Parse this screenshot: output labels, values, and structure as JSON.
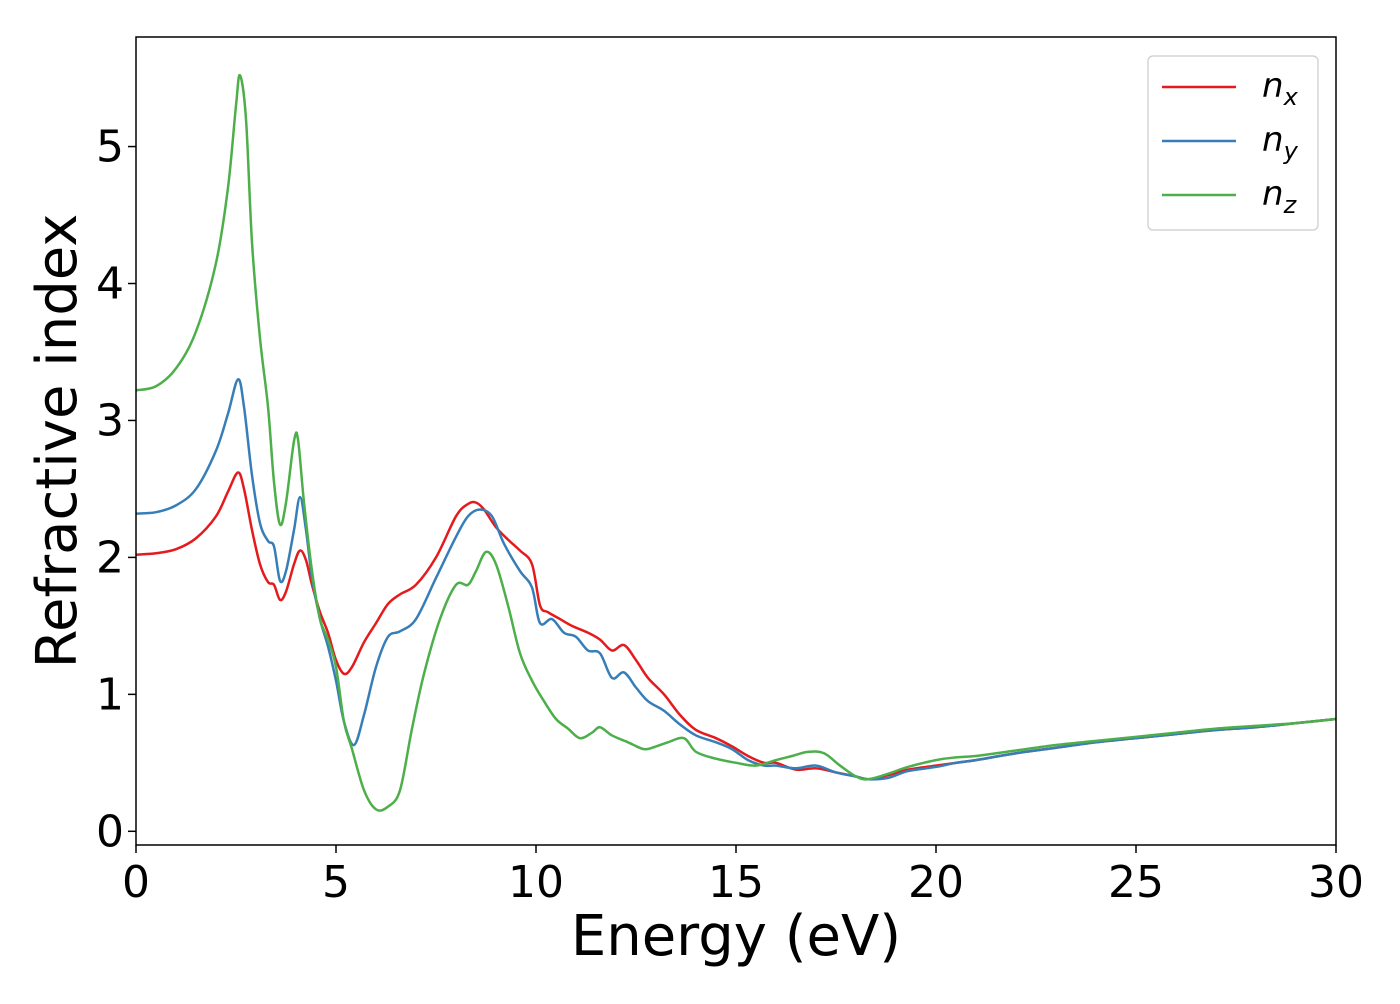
{
  "chart_data": {
    "type": "line",
    "title": "",
    "xlabel": "Energy (eV)",
    "ylabel": "Refractive index",
    "xlim": [
      0,
      30
    ],
    "ylim": [
      -0.1,
      5.8
    ],
    "xticks": [
      0,
      5,
      10,
      15,
      20,
      25,
      30
    ],
    "yticks": [
      0,
      1,
      2,
      3,
      4,
      5
    ],
    "grid": false,
    "legend_position": "top-right",
    "series": [
      {
        "name": "n",
        "subscript": "x",
        "color": "#e41a1c",
        "points": [
          [
            0,
            2.02
          ],
          [
            0.5,
            2.03
          ],
          [
            1,
            2.06
          ],
          [
            1.5,
            2.14
          ],
          [
            2,
            2.3
          ],
          [
            2.3,
            2.48
          ],
          [
            2.55,
            2.62
          ],
          [
            2.7,
            2.5
          ],
          [
            2.9,
            2.2
          ],
          [
            3.1,
            1.95
          ],
          [
            3.3,
            1.82
          ],
          [
            3.45,
            1.8
          ],
          [
            3.6,
            1.69
          ],
          [
            3.75,
            1.75
          ],
          [
            3.95,
            1.95
          ],
          [
            4.1,
            2.05
          ],
          [
            4.25,
            1.98
          ],
          [
            4.4,
            1.8
          ],
          [
            4.6,
            1.6
          ],
          [
            4.8,
            1.45
          ],
          [
            5,
            1.25
          ],
          [
            5.2,
            1.15
          ],
          [
            5.4,
            1.2
          ],
          [
            5.7,
            1.38
          ],
          [
            6,
            1.52
          ],
          [
            6.3,
            1.66
          ],
          [
            6.6,
            1.73
          ],
          [
            7,
            1.8
          ],
          [
            7.5,
            2.0
          ],
          [
            8,
            2.3
          ],
          [
            8.3,
            2.39
          ],
          [
            8.5,
            2.4
          ],
          [
            8.7,
            2.35
          ],
          [
            9,
            2.22
          ],
          [
            9.3,
            2.13
          ],
          [
            9.6,
            2.05
          ],
          [
            9.9,
            1.95
          ],
          [
            10.1,
            1.65
          ],
          [
            10.3,
            1.6
          ],
          [
            10.6,
            1.55
          ],
          [
            10.9,
            1.5
          ],
          [
            11.3,
            1.45
          ],
          [
            11.6,
            1.4
          ],
          [
            11.9,
            1.32
          ],
          [
            12.2,
            1.36
          ],
          [
            12.5,
            1.25
          ],
          [
            12.8,
            1.12
          ],
          [
            13.2,
            1.0
          ],
          [
            13.6,
            0.85
          ],
          [
            14,
            0.74
          ],
          [
            14.5,
            0.68
          ],
          [
            14.9,
            0.62
          ],
          [
            15.3,
            0.55
          ],
          [
            15.7,
            0.5
          ],
          [
            16,
            0.5
          ],
          [
            16.5,
            0.45
          ],
          [
            17,
            0.46
          ],
          [
            17.5,
            0.43
          ],
          [
            18,
            0.4
          ],
          [
            18.3,
            0.38
          ],
          [
            18.8,
            0.41
          ],
          [
            19.3,
            0.45
          ],
          [
            20,
            0.48
          ],
          [
            20.5,
            0.5
          ],
          [
            21,
            0.52
          ],
          [
            22,
            0.57
          ],
          [
            23,
            0.61
          ],
          [
            24,
            0.65
          ],
          [
            25,
            0.68
          ],
          [
            26,
            0.71
          ],
          [
            27,
            0.74
          ],
          [
            28,
            0.76
          ],
          [
            29,
            0.79
          ],
          [
            30,
            0.82
          ]
        ]
      },
      {
        "name": "n",
        "subscript": "y",
        "color": "#377eb8",
        "points": [
          [
            0,
            2.32
          ],
          [
            0.5,
            2.33
          ],
          [
            1,
            2.38
          ],
          [
            1.5,
            2.5
          ],
          [
            2,
            2.78
          ],
          [
            2.3,
            3.05
          ],
          [
            2.55,
            3.3
          ],
          [
            2.7,
            3.1
          ],
          [
            2.9,
            2.6
          ],
          [
            3.1,
            2.25
          ],
          [
            3.3,
            2.12
          ],
          [
            3.45,
            2.08
          ],
          [
            3.6,
            1.83
          ],
          [
            3.75,
            1.9
          ],
          [
            3.95,
            2.2
          ],
          [
            4.1,
            2.44
          ],
          [
            4.25,
            2.2
          ],
          [
            4.4,
            1.85
          ],
          [
            4.6,
            1.55
          ],
          [
            4.8,
            1.35
          ],
          [
            5,
            1.1
          ],
          [
            5.2,
            0.8
          ],
          [
            5.45,
            0.63
          ],
          [
            5.7,
            0.85
          ],
          [
            6,
            1.2
          ],
          [
            6.3,
            1.42
          ],
          [
            6.6,
            1.46
          ],
          [
            7,
            1.55
          ],
          [
            7.5,
            1.85
          ],
          [
            8,
            2.15
          ],
          [
            8.3,
            2.3
          ],
          [
            8.6,
            2.35
          ],
          [
            8.9,
            2.3
          ],
          [
            9.2,
            2.1
          ],
          [
            9.6,
            1.9
          ],
          [
            9.9,
            1.78
          ],
          [
            10.1,
            1.52
          ],
          [
            10.4,
            1.55
          ],
          [
            10.7,
            1.45
          ],
          [
            11,
            1.42
          ],
          [
            11.3,
            1.32
          ],
          [
            11.6,
            1.3
          ],
          [
            11.9,
            1.12
          ],
          [
            12.2,
            1.16
          ],
          [
            12.5,
            1.05
          ],
          [
            12.8,
            0.95
          ],
          [
            13.2,
            0.88
          ],
          [
            13.6,
            0.78
          ],
          [
            14,
            0.7
          ],
          [
            14.5,
            0.65
          ],
          [
            14.9,
            0.6
          ],
          [
            15.3,
            0.52
          ],
          [
            15.7,
            0.48
          ],
          [
            16,
            0.48
          ],
          [
            16.5,
            0.46
          ],
          [
            17,
            0.48
          ],
          [
            17.5,
            0.43
          ],
          [
            18,
            0.4
          ],
          [
            18.3,
            0.38
          ],
          [
            18.8,
            0.39
          ],
          [
            19.3,
            0.44
          ],
          [
            20,
            0.47
          ],
          [
            20.5,
            0.5
          ],
          [
            21,
            0.52
          ],
          [
            22,
            0.57
          ],
          [
            23,
            0.61
          ],
          [
            24,
            0.65
          ],
          [
            25,
            0.68
          ],
          [
            26,
            0.71
          ],
          [
            27,
            0.74
          ],
          [
            28,
            0.76
          ],
          [
            29,
            0.79
          ],
          [
            30,
            0.82
          ]
        ]
      },
      {
        "name": "n",
        "subscript": "z",
        "color": "#4daf4a",
        "points": [
          [
            0,
            3.22
          ],
          [
            0.5,
            3.25
          ],
          [
            1,
            3.38
          ],
          [
            1.5,
            3.65
          ],
          [
            2,
            4.15
          ],
          [
            2.3,
            4.7
          ],
          [
            2.5,
            5.3
          ],
          [
            2.6,
            5.52
          ],
          [
            2.75,
            5.2
          ],
          [
            2.9,
            4.3
          ],
          [
            3.1,
            3.6
          ],
          [
            3.3,
            3.1
          ],
          [
            3.45,
            2.55
          ],
          [
            3.6,
            2.24
          ],
          [
            3.75,
            2.4
          ],
          [
            3.95,
            2.85
          ],
          [
            4.05,
            2.86
          ],
          [
            4.2,
            2.4
          ],
          [
            4.4,
            1.9
          ],
          [
            4.6,
            1.55
          ],
          [
            4.8,
            1.4
          ],
          [
            5,
            1.2
          ],
          [
            5.2,
            0.8
          ],
          [
            5.4,
            0.6
          ],
          [
            5.7,
            0.3
          ],
          [
            6,
            0.16
          ],
          [
            6.3,
            0.18
          ],
          [
            6.6,
            0.3
          ],
          [
            6.9,
            0.75
          ],
          [
            7.2,
            1.15
          ],
          [
            7.6,
            1.55
          ],
          [
            8,
            1.8
          ],
          [
            8.3,
            1.8
          ],
          [
            8.5,
            1.9
          ],
          [
            8.75,
            2.04
          ],
          [
            9,
            1.95
          ],
          [
            9.3,
            1.65
          ],
          [
            9.6,
            1.3
          ],
          [
            9.9,
            1.1
          ],
          [
            10.2,
            0.95
          ],
          [
            10.5,
            0.82
          ],
          [
            10.8,
            0.75
          ],
          [
            11.1,
            0.68
          ],
          [
            11.4,
            0.72
          ],
          [
            11.6,
            0.76
          ],
          [
            11.9,
            0.7
          ],
          [
            12.3,
            0.65
          ],
          [
            12.7,
            0.6
          ],
          [
            13,
            0.62
          ],
          [
            13.3,
            0.65
          ],
          [
            13.7,
            0.68
          ],
          [
            14,
            0.58
          ],
          [
            14.5,
            0.53
          ],
          [
            15,
            0.5
          ],
          [
            15.5,
            0.48
          ],
          [
            16,
            0.52
          ],
          [
            16.4,
            0.55
          ],
          [
            16.8,
            0.58
          ],
          [
            17.2,
            0.57
          ],
          [
            17.6,
            0.48
          ],
          [
            18,
            0.4
          ],
          [
            18.3,
            0.38
          ],
          [
            18.8,
            0.42
          ],
          [
            19.3,
            0.47
          ],
          [
            20,
            0.52
          ],
          [
            20.5,
            0.54
          ],
          [
            21,
            0.55
          ],
          [
            22,
            0.59
          ],
          [
            23,
            0.63
          ],
          [
            24,
            0.66
          ],
          [
            25,
            0.69
          ],
          [
            26,
            0.72
          ],
          [
            27,
            0.75
          ],
          [
            28,
            0.77
          ],
          [
            29,
            0.79
          ],
          [
            30,
            0.82
          ]
        ]
      }
    ]
  }
}
